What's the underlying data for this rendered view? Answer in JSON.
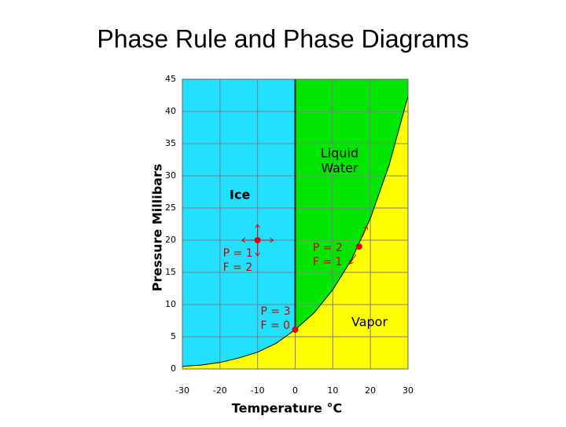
{
  "chart_data": {
    "type": "phase",
    "title": "Phase Rule and Phase Diagrams",
    "x_label": "Temperature °C",
    "y_label": "Pressure Millibars",
    "xlim": [
      -30,
      30
    ],
    "xticks": [
      -30,
      -20,
      -10,
      0,
      10,
      20,
      30
    ],
    "ylim": [
      0,
      45
    ],
    "yticks": [
      0,
      5,
      10,
      15,
      20,
      25,
      30,
      35,
      40,
      45
    ],
    "grid": true,
    "curve": {
      "x": [
        -30,
        -25,
        -20,
        -15,
        -10,
        -5,
        0,
        5,
        10,
        15,
        20,
        25,
        30
      ],
      "y": [
        0.4,
        0.6,
        1.0,
        1.7,
        2.6,
        4.0,
        6.1,
        8.7,
        12.3,
        17.0,
        23.4,
        31.7,
        42.4
      ]
    },
    "regions": [
      {
        "name": [
          "Ice"
        ],
        "color": "#22e0ff"
      },
      {
        "name": [
          "Liquid",
          "Water"
        ],
        "color": "#00e600"
      },
      {
        "name": [
          "Vapor"
        ],
        "color": "#ffff00"
      }
    ],
    "points": {
      "color": "#e00000",
      "x": [
        -10,
        0,
        17
      ],
      "y": [
        20,
        6.1,
        19
      ],
      "labels": [
        [
          "P = 1",
          "F = 2"
        ],
        [
          "P = 3",
          "F = 0"
        ],
        [
          "P = 2",
          "F = 1"
        ]
      ]
    }
  }
}
